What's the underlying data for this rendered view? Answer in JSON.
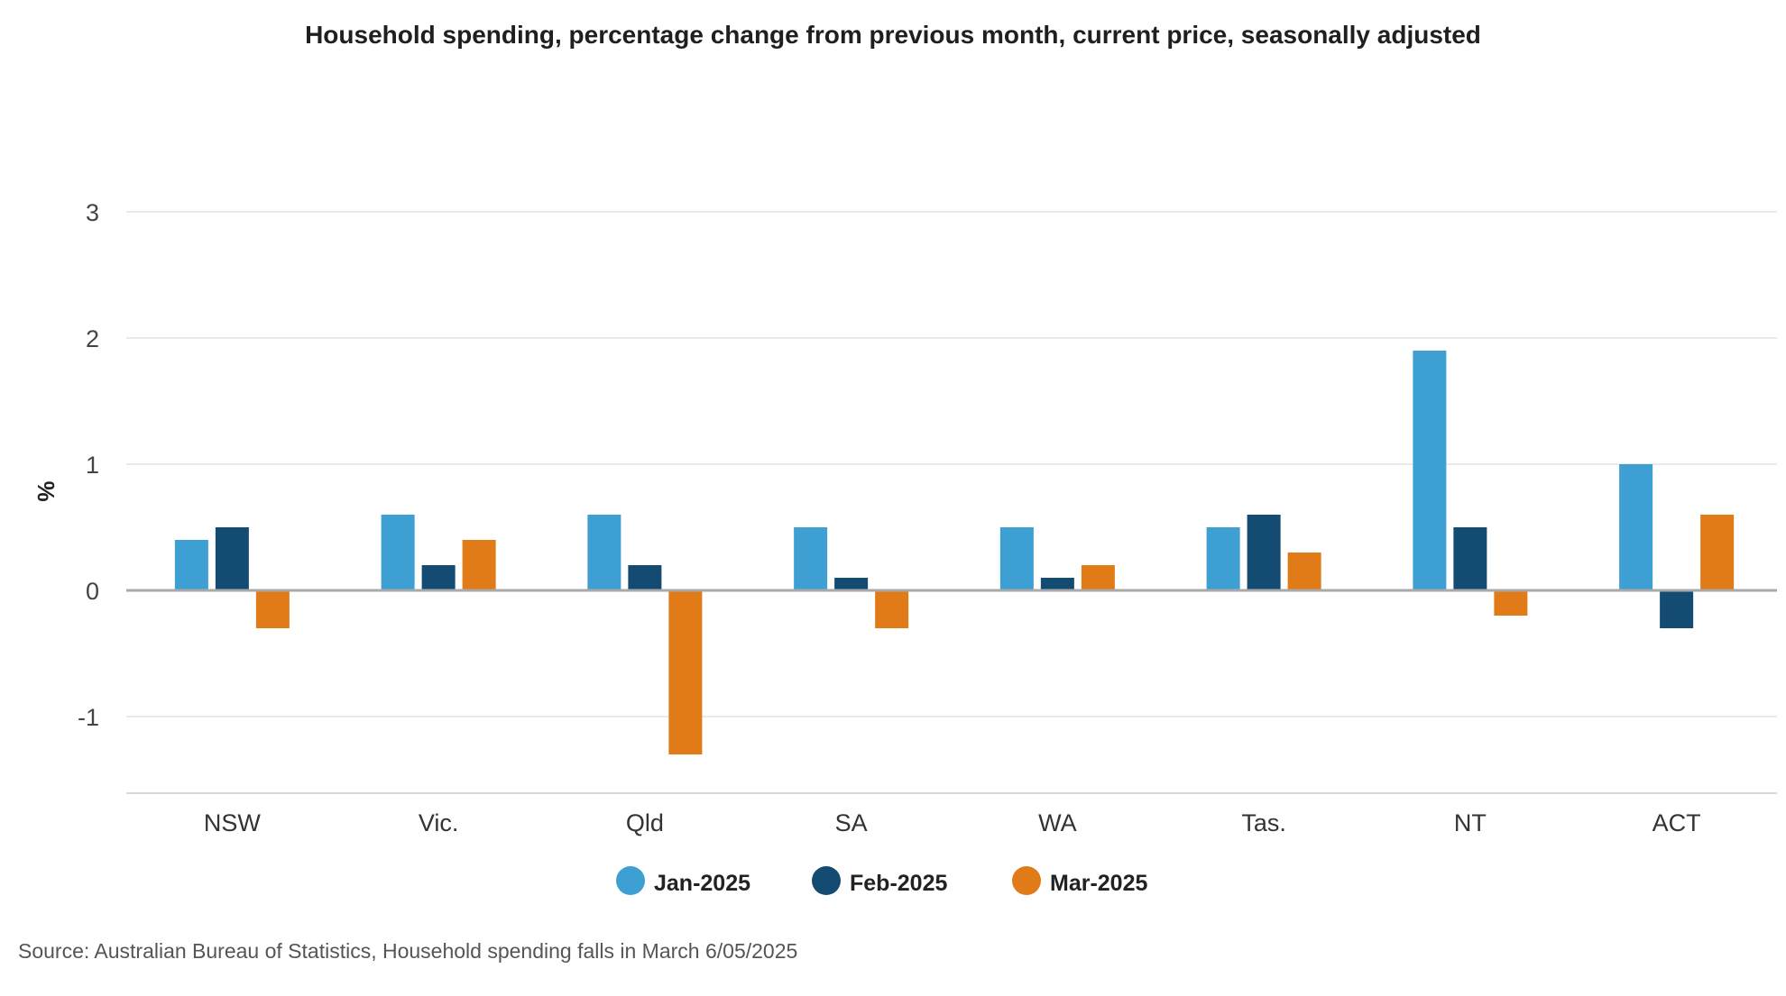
{
  "chart_data": {
    "type": "bar",
    "title": "Household spending, percentage change from previous month, current price, seasonally adjusted",
    "xlabel": "",
    "ylabel": "%",
    "ylim": [
      -1.5,
      3.5
    ],
    "yticks": [
      3,
      2,
      1,
      0,
      -1
    ],
    "categories": [
      "NSW",
      "Vic.",
      "Qld",
      "SA",
      "WA",
      "Tas.",
      "NT",
      "ACT"
    ],
    "series": [
      {
        "name": "Jan-2025",
        "color": "#3e9fd3",
        "values": [
          0.4,
          0.6,
          0.6,
          0.5,
          0.5,
          0.5,
          1.9,
          1.0
        ]
      },
      {
        "name": "Feb-2025",
        "color": "#144b72",
        "values": [
          0.5,
          0.2,
          0.2,
          0.1,
          0.1,
          0.6,
          0.5,
          -0.3
        ]
      },
      {
        "name": "Mar-2025",
        "color": "#e07b18",
        "values": [
          -0.3,
          0.4,
          -1.3,
          -0.3,
          0.2,
          0.3,
          -0.2,
          0.6
        ]
      }
    ],
    "legend_position": "bottom-center",
    "grid": true
  },
  "source": "Source: Australian Bureau of Statistics, Household spending falls in March 6/05/2025"
}
